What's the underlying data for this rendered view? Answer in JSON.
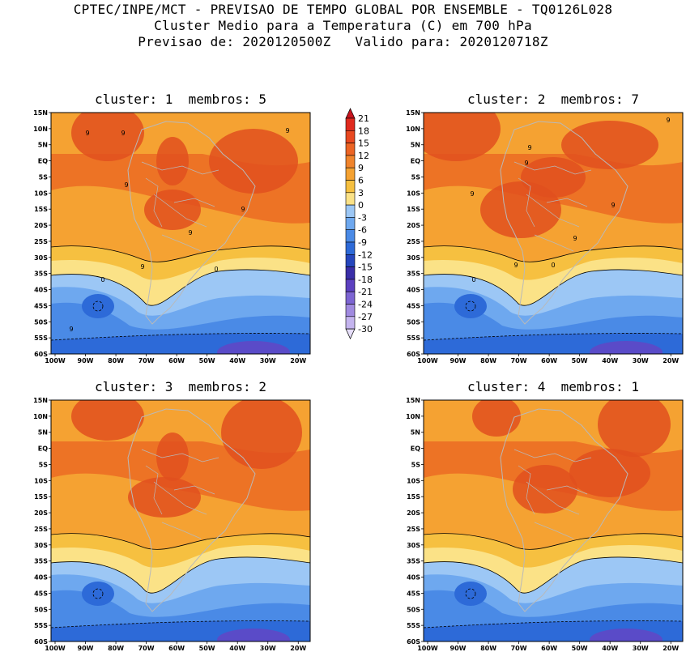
{
  "header": {
    "line1": "CPTEC/INPE/MCT - PREVISAO DE TEMPO GLOBAL POR ENSEMBLE - TQ0126L028",
    "line2": "Cluster Medio para a Temperatura (C) em 700 hPa",
    "line3": "Previsao de: 2020120500Z   Valido para: 2020120718Z"
  },
  "panels": [
    {
      "title": "cluster: 1  membros: 5"
    },
    {
      "title": "cluster: 2  membros: 7"
    },
    {
      "title": "cluster: 3  membros: 2"
    },
    {
      "title": "cluster: 4  membros: 1"
    }
  ],
  "axes": {
    "lat_labels": [
      "15N",
      "10N",
      "5N",
      "EQ",
      "5S",
      "10S",
      "15S",
      "20S",
      "25S",
      "30S",
      "35S",
      "40S",
      "45S",
      "50S",
      "55S",
      "60S"
    ],
    "lon_labels": [
      "100W",
      "90W",
      "80W",
      "70W",
      "60W",
      "50W",
      "40W",
      "30W",
      "20W"
    ]
  },
  "colorbar": {
    "labels": [
      "21",
      "18",
      "15",
      "12",
      "9",
      "6",
      "3",
      "0",
      "-3",
      "-6",
      "-9",
      "-12",
      "-15",
      "-18",
      "-21",
      "-24",
      "-27",
      "-30"
    ],
    "colors": [
      "#c8141e",
      "#e02a1e",
      "#e84820",
      "#ec6424",
      "#f0842c",
      "#f5a232",
      "#f6c040",
      "#fbe287",
      "#9cc7f5",
      "#6ea8ef",
      "#4a8ae6",
      "#2d6ad8",
      "#2546bd",
      "#3a2ea8",
      "#5c40c0",
      "#7d65d3",
      "#a08ae0",
      "#c4b4ee",
      "#e6def9"
    ]
  },
  "contour_labels": [
    "9",
    "0"
  ]
}
